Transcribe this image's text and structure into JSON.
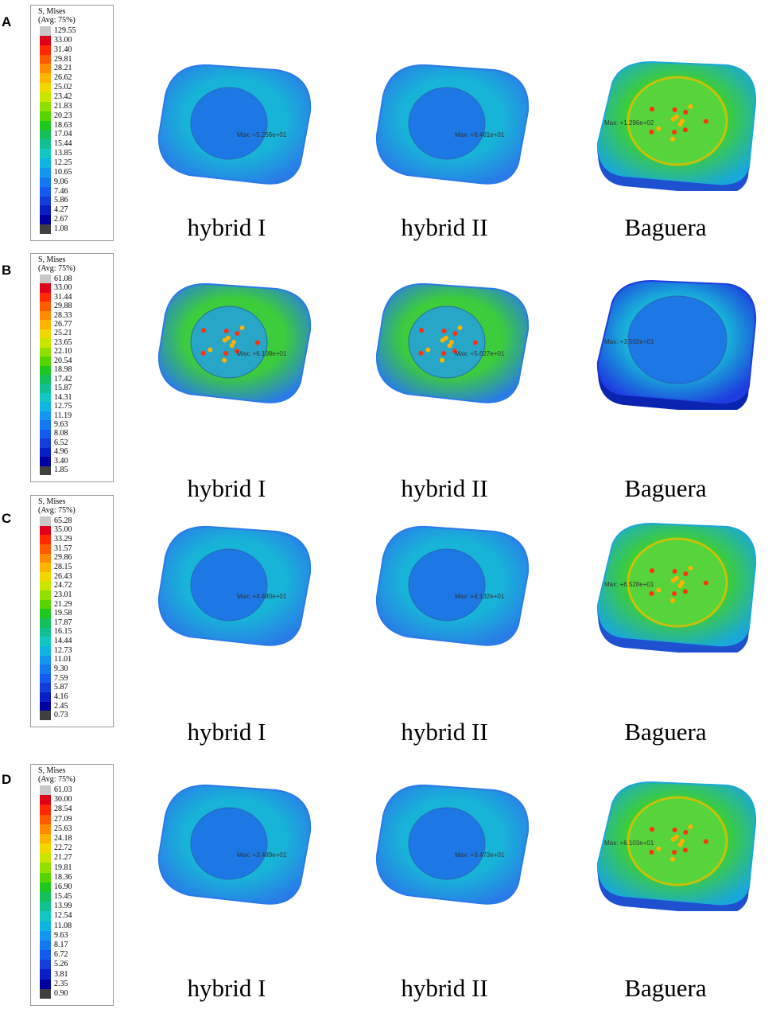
{
  "panels": [
    {
      "label": "A",
      "legend": {
        "title1": "S, Mises",
        "title2": "(Avg: 75%)",
        "values": [
          "129.55",
          "33.00",
          "31.40",
          "29.81",
          "28.21",
          "26.62",
          "25.02",
          "23.42",
          "21.83",
          "20.23",
          "18.63",
          "17.04",
          "15.44",
          "13.85",
          "12.25",
          "10.65",
          "9.06",
          "7.46",
          "5.86",
          "4.27",
          "2.67",
          "1.08"
        ]
      },
      "models": [
        {
          "caption": "hybrid I",
          "max_label": "Max: +5.256e+01"
        },
        {
          "caption": "hybrid II",
          "max_label": "Max: +6.461e+01"
        },
        {
          "caption": "Baguera",
          "max_label": "Max: +1.296e+02"
        }
      ]
    },
    {
      "label": "B",
      "legend": {
        "title1": "S, Mises",
        "title2": "(Avg: 75%)",
        "values": [
          "61.08",
          "33.00",
          "31.44",
          "29.88",
          "28.33",
          "26.77",
          "25.21",
          "23.65",
          "22.10",
          "20.54",
          "18.98",
          "17.42",
          "15.87",
          "14.31",
          "12.75",
          "11.19",
          "9.63",
          "8.08",
          "6.52",
          "4.96",
          "3.40",
          "1.85"
        ]
      },
      "models": [
        {
          "caption": "hybrid I",
          "max_label": "Max: +6.108e+01"
        },
        {
          "caption": "hybrid II",
          "max_label": "Max: +5.627e+01"
        },
        {
          "caption": "Baguera",
          "max_label": "Max: +3.502e+01"
        }
      ]
    },
    {
      "label": "C",
      "legend": {
        "title1": "S, Mises",
        "title2": "(Avg: 75%)",
        "values": [
          "65.28",
          "35.00",
          "33.29",
          "31.57",
          "29.86",
          "28.15",
          "26.43",
          "24.72",
          "23.01",
          "21.29",
          "19.58",
          "17.87",
          "16.15",
          "14.44",
          "12.73",
          "11.01",
          "9.30",
          "7.59",
          "5.87",
          "4.16",
          "2.45",
          "0.73"
        ]
      },
      "models": [
        {
          "caption": "hybrid I",
          "max_label": "Max: +4.480e+01"
        },
        {
          "caption": "hybrid II",
          "max_label": "Max: +4.132e+01"
        },
        {
          "caption": "Baguera",
          "max_label": "Max: +6.528e+01"
        }
      ]
    },
    {
      "label": "D",
      "legend": {
        "title1": "S, Mises",
        "title2": "(Avg: 75%)",
        "values": [
          "61.03",
          "30.00",
          "28.54",
          "27.09",
          "25.63",
          "24.18",
          "22.72",
          "21.27",
          "19.81",
          "18.36",
          "16.90",
          "15.45",
          "13.99",
          "12.54",
          "11.08",
          "9.63",
          "8.17",
          "6.72",
          "5.26",
          "3.81",
          "2.35",
          "0.90"
        ]
      },
      "models": [
        {
          "caption": "hybrid I",
          "max_label": "Max: +3.489e+01"
        },
        {
          "caption": "hybrid II",
          "max_label": "Max: +3.473e+01"
        },
        {
          "caption": "Baguera",
          "max_label": "Max: +6.103e+01"
        }
      ]
    }
  ],
  "colors": {
    "scale": [
      "#c8c8c8",
      "#e0001a",
      "#ff2a00",
      "#ff5a00",
      "#ff8c00",
      "#ffb400",
      "#f0d800",
      "#c8e600",
      "#8fe000",
      "#55d400",
      "#1fc81f",
      "#14c05a",
      "#10c090",
      "#10c8c0",
      "#10b4e0",
      "#1496f0",
      "#1478f0",
      "#145af0",
      "#143cdc",
      "#0a1ec8",
      "#0000a0",
      "#404040"
    ]
  }
}
